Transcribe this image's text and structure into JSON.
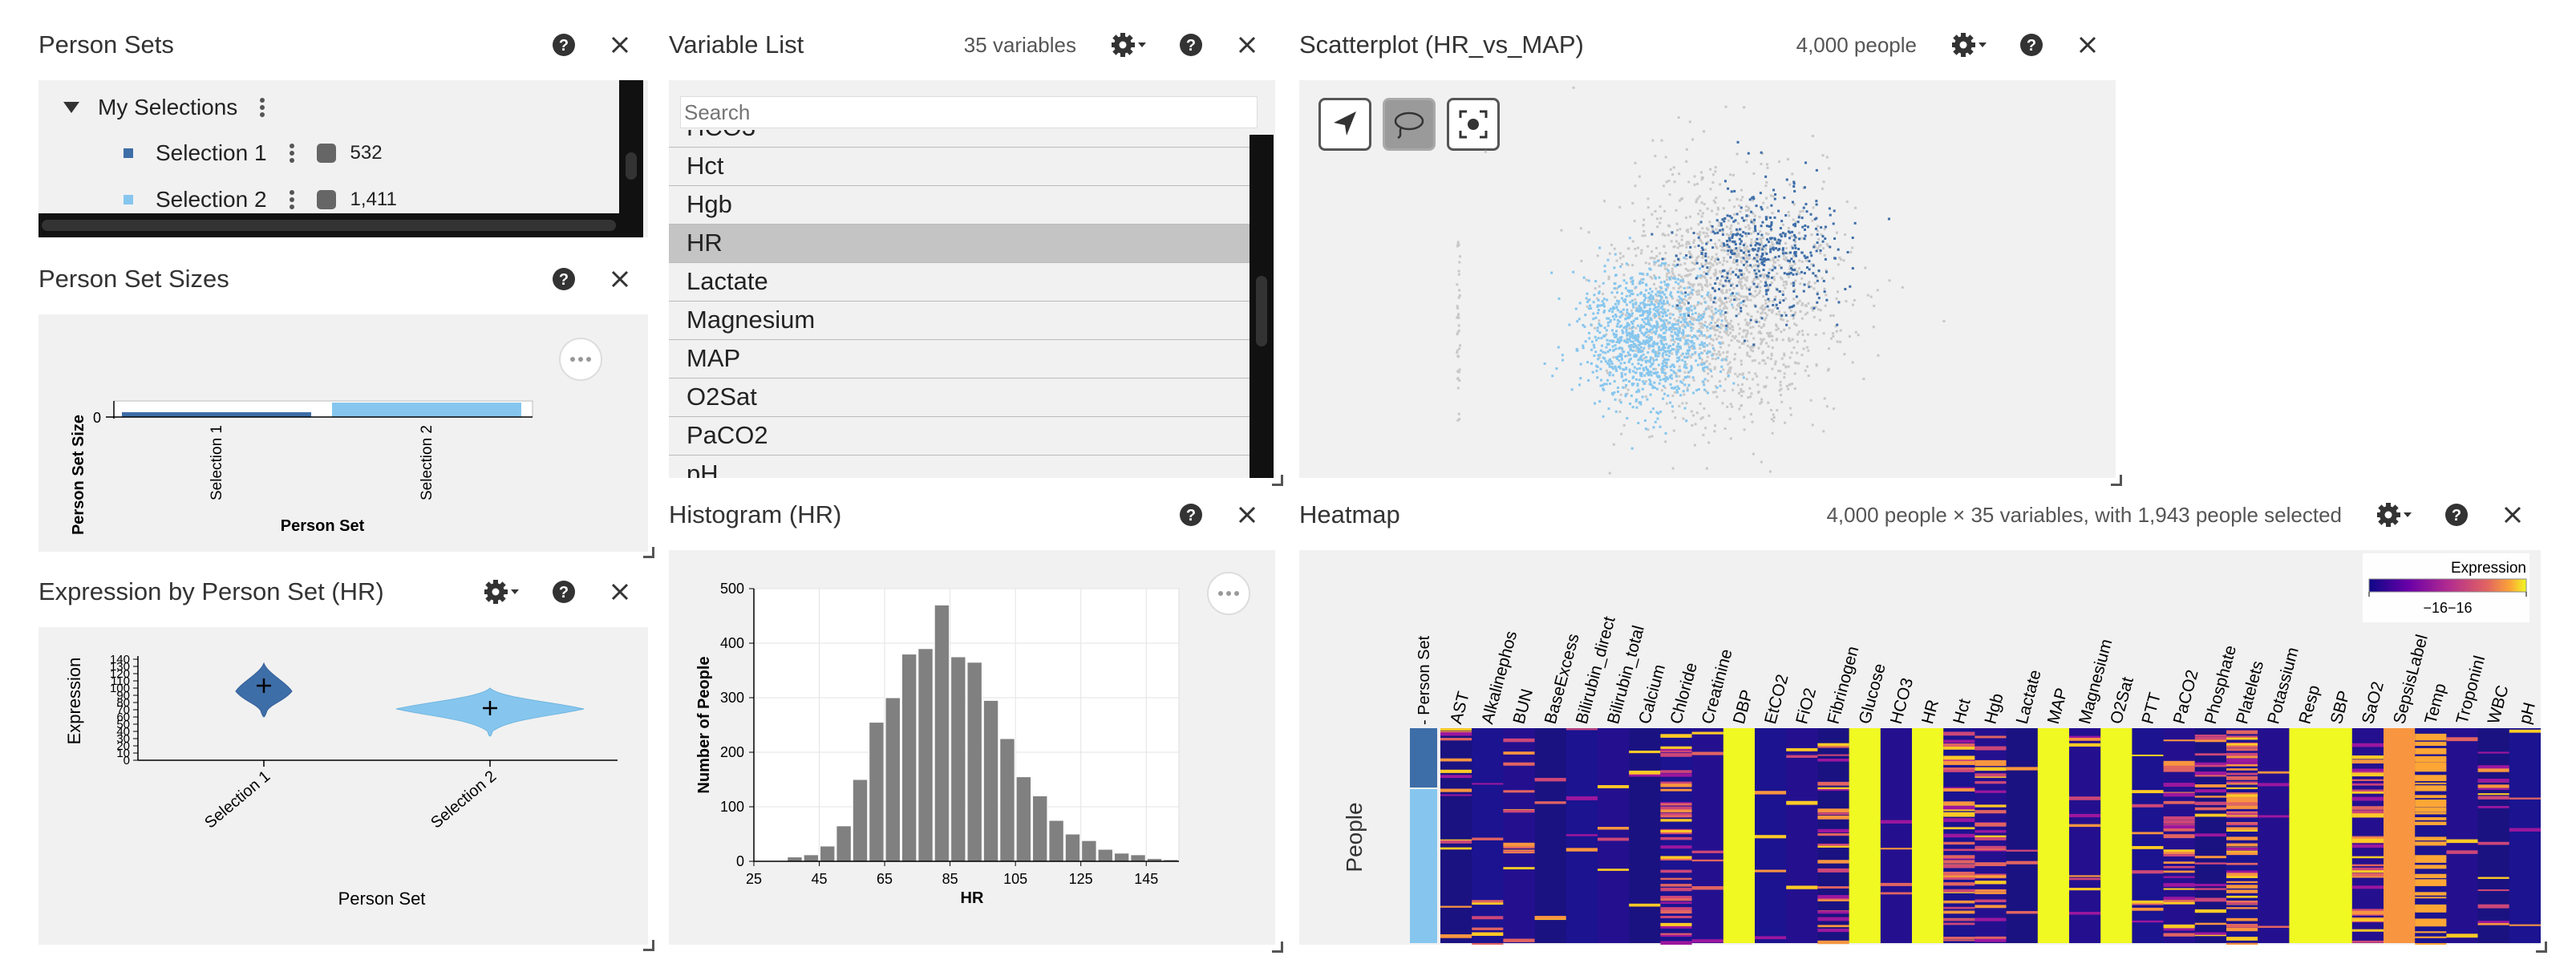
{
  "person_sets": {
    "title": "Person Sets",
    "group_label": "My Selections",
    "items": [
      {
        "label": "Selection 1",
        "count": "532",
        "color": "#3e6ea8"
      },
      {
        "label": "Selection 2",
        "count": "1,411",
        "color": "#86c6ee"
      }
    ]
  },
  "person_set_sizes": {
    "title": "Person Set Sizes",
    "ylabel": "Person Set Size",
    "xlabel": "Person Set",
    "y_tick": "0",
    "categories": [
      "Selection 1",
      "Selection 2"
    ]
  },
  "expression": {
    "title": "Expression by Person Set (HR)",
    "ylabel": "Expression",
    "xlabel": "Person Set",
    "y_ticks": [
      "140",
      "130",
      "120",
      "110",
      "100",
      "90",
      "80",
      "70",
      "60",
      "50",
      "40",
      "30",
      "20",
      "10",
      "0"
    ],
    "categories": [
      "Selection 1",
      "Selection 2"
    ]
  },
  "variable_list": {
    "title": "Variable List",
    "count_text": "35 variables",
    "search_placeholder": "Search",
    "partial_top": "HCO3",
    "items": [
      "Hct",
      "Hgb",
      "HR",
      "Lactate",
      "Magnesium",
      "MAP",
      "O2Sat",
      "PaCO2"
    ],
    "partial_bottom": "pH",
    "selected": "HR"
  },
  "histogram": {
    "title": "Histogram (HR)",
    "xlabel": "HR",
    "ylabel": "Number of People",
    "x_ticks": [
      "25",
      "45",
      "65",
      "85",
      "105",
      "125",
      "145"
    ],
    "y_ticks": [
      "0",
      "100",
      "200",
      "300",
      "400",
      "500"
    ]
  },
  "scatterplot": {
    "title": "Scatterplot (HR_vs_MAP)",
    "count_text": "4,000 people"
  },
  "heatmap": {
    "title": "Heatmap",
    "info_text": "4,000 people × 35 variables, with 1,943 people selected",
    "legend_title": "Expression",
    "legend_value": "−16−16",
    "row_label": "People",
    "set_label": "- Person Set",
    "columns": [
      "AST",
      "Alkalinephos",
      "BUN",
      "BaseExcess",
      "Bilirubin_direct",
      "Bilirubin_total",
      "Calcium",
      "Chloride",
      "Creatinine",
      "DBP",
      "EtCO2",
      "FiO2",
      "Fibrinogen",
      "Glucose",
      "HCO3",
      "HR",
      "Hct",
      "Hgb",
      "Lactate",
      "MAP",
      "Magnesium",
      "O2Sat",
      "PTT",
      "PaCO2",
      "Phosphate",
      "Platelets",
      "Potassium",
      "Resp",
      "SBP",
      "SaO2",
      "SepsisLabel",
      "Temp",
      "TroponinI",
      "WBC",
      "pH"
    ]
  },
  "colors": {
    "selection1": "#3e6ea8",
    "selection2": "#86c6ee",
    "panel_bg": "#f1f1f1",
    "bar_gray": "#808080",
    "heat_low": "#1a1281",
    "heat_high": "#f0f921"
  },
  "chart_data": [
    {
      "type": "bar",
      "title": "Person Set Sizes",
      "categories": [
        "Selection 1",
        "Selection 2"
      ],
      "values": [
        532,
        1411
      ],
      "xlabel": "Person Set",
      "ylabel": "Person Set Size"
    },
    {
      "type": "bar",
      "title": "Histogram (HR)",
      "xlabel": "HR",
      "ylabel": "Number of People",
      "x": [
        25,
        30,
        35,
        40,
        45,
        50,
        55,
        60,
        65,
        70,
        75,
        80,
        85,
        90,
        95,
        100,
        105,
        110,
        115,
        120,
        125,
        130,
        135,
        140,
        145,
        150
      ],
      "values": [
        0,
        0,
        8,
        12,
        28,
        65,
        150,
        255,
        300,
        380,
        390,
        470,
        375,
        365,
        295,
        225,
        155,
        120,
        75,
        50,
        38,
        22,
        15,
        12,
        5,
        3
      ],
      "xlim": [
        25,
        155
      ],
      "ylim": [
        0,
        500
      ]
    },
    {
      "type": "scatter",
      "title": "Scatterplot (HR_vs_MAP)",
      "series": [
        {
          "name": "Selection 1",
          "count": 532
        },
        {
          "name": "Selection 2",
          "count": 1411
        }
      ]
    },
    {
      "type": "violin",
      "title": "Expression by Person Set (HR)",
      "categories": [
        "Selection 1",
        "Selection 2"
      ],
      "medians": [
        110,
        73
      ],
      "ylim": [
        0,
        140
      ]
    }
  ]
}
